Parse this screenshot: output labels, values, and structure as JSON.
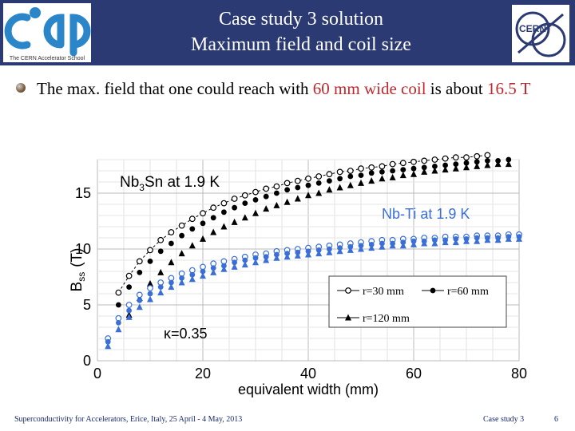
{
  "header": {
    "title_line1": "Case study 3 solution",
    "title_line2": "Maximum field and coil size",
    "cas_logo_caption": "The CERN Accelerator School",
    "cern_logo_text": "CERN"
  },
  "bullet": {
    "part1": "The max. field that one could reach with ",
    "highlight1": "60 mm wide coil",
    "part2": " is about ",
    "highlight2": "16.5 T"
  },
  "colors": {
    "header_bg": "#2b3a73",
    "highlight": "#c0272d",
    "nb3sn": "#000000",
    "nbti": "#3a6fd8"
  },
  "chart_data": {
    "type": "scatter",
    "xlabel": "equivalent width (mm)",
    "ylabel": "B",
    "ylabel_sub": "ss",
    "ylabel_unit": "(T)",
    "xlim": [
      0,
      80
    ],
    "ylim": [
      0,
      18
    ],
    "xticks": [
      0,
      20,
      40,
      60,
      80
    ],
    "yticks": [
      0,
      5,
      10,
      15
    ],
    "grid": true,
    "annotations": {
      "nb3sn_label": "Nb",
      "nb3sn_sub": "3",
      "nb3sn_rest": "Sn at 1.9 K",
      "nbti_label": "Nb-Ti at 1.9 K",
      "kappa": "κ=0.35"
    },
    "legend": {
      "placement": "bottom-right",
      "entries": [
        "r=30 mm",
        "r=60 mm",
        "r=120 mm"
      ]
    },
    "x": [
      2,
      4,
      6,
      8,
      10,
      12,
      14,
      16,
      18,
      20,
      22,
      24,
      26,
      28,
      30,
      32,
      34,
      36,
      38,
      40,
      42,
      44,
      46,
      48,
      50,
      52,
      54,
      56,
      58,
      60,
      62,
      64,
      66,
      68,
      70,
      72,
      74,
      76,
      78,
      80
    ],
    "series": [
      {
        "name": "r=30 mm",
        "group": "Nb3Sn",
        "marker": "open-circle",
        "values": [
          null,
          6.1,
          7.6,
          8.9,
          9.9,
          10.8,
          11.5,
          12.1,
          12.7,
          13.2,
          13.7,
          14.1,
          14.5,
          14.8,
          15.1,
          15.4,
          15.6,
          15.9,
          16.1,
          16.3,
          16.5,
          16.7,
          16.9,
          17.0,
          17.2,
          17.3,
          17.4,
          17.6,
          17.7,
          17.8,
          17.9,
          18.0,
          18.1,
          18.2,
          18.2,
          18.3,
          18.4,
          null,
          null,
          null
        ]
      },
      {
        "name": "r=60 mm",
        "group": "Nb3Sn",
        "marker": "filled-circle",
        "values": [
          null,
          5.0,
          6.6,
          7.9,
          8.9,
          9.8,
          10.5,
          11.2,
          11.8,
          12.3,
          12.8,
          13.3,
          13.7,
          14.1,
          14.4,
          14.7,
          15.0,
          15.3,
          15.5,
          15.7,
          15.9,
          16.1,
          16.3,
          16.5,
          16.6,
          16.8,
          16.9,
          17.0,
          17.1,
          17.2,
          17.3,
          17.4,
          17.5,
          17.6,
          17.7,
          17.8,
          17.9,
          17.9,
          18.0,
          null
        ]
      },
      {
        "name": "r=120 mm",
        "group": "Nb3Sn",
        "marker": "filled-triangle",
        "values": [
          null,
          null,
          4.1,
          5.6,
          6.9,
          7.9,
          8.8,
          9.6,
          10.3,
          10.9,
          11.5,
          12.0,
          12.4,
          12.8,
          13.2,
          13.6,
          13.9,
          14.2,
          14.5,
          14.8,
          15.0,
          15.3,
          15.5,
          15.7,
          15.9,
          16.1,
          16.3,
          16.4,
          16.6,
          16.7,
          16.9,
          17.0,
          17.1,
          17.2,
          17.3,
          17.4,
          17.5,
          17.6,
          17.6,
          null
        ]
      },
      {
        "name": "r=30 mm",
        "group": "Nb-Ti",
        "marker": "open-circle",
        "values": [
          2.0,
          3.8,
          5.0,
          5.9,
          6.5,
          7.0,
          7.4,
          7.8,
          8.1,
          8.4,
          8.7,
          8.9,
          9.1,
          9.3,
          9.5,
          9.6,
          9.8,
          9.9,
          10.0,
          10.1,
          10.2,
          10.3,
          10.4,
          10.5,
          10.6,
          10.7,
          10.8,
          10.8,
          10.9,
          10.9,
          11.0,
          11.0,
          11.1,
          11.1,
          11.1,
          11.2,
          11.2,
          11.2,
          11.3,
          11.3
        ]
      },
      {
        "name": "r=60 mm",
        "group": "Nb-Ti",
        "marker": "filled-circle",
        "values": [
          1.7,
          3.4,
          4.5,
          5.4,
          6.0,
          6.6,
          7.0,
          7.4,
          7.7,
          8.0,
          8.3,
          8.5,
          8.8,
          9.0,
          9.2,
          9.3,
          9.5,
          9.6,
          9.7,
          9.8,
          9.9,
          10.0,
          10.1,
          10.2,
          10.3,
          10.4,
          10.5,
          10.5,
          10.6,
          10.7,
          10.7,
          10.8,
          10.8,
          10.9,
          10.9,
          11.0,
          11.0,
          11.0,
          11.1,
          11.1
        ]
      },
      {
        "name": "r=120 mm",
        "group": "Nb-Ti",
        "marker": "filled-triangle",
        "values": [
          1.3,
          2.8,
          3.9,
          4.8,
          5.5,
          6.1,
          6.6,
          7.0,
          7.3,
          7.6,
          7.9,
          8.2,
          8.4,
          8.6,
          8.8,
          9.0,
          9.2,
          9.3,
          9.4,
          9.5,
          9.6,
          9.7,
          9.8,
          9.9,
          10.0,
          10.1,
          10.2,
          10.3,
          10.3,
          10.4,
          10.5,
          10.5,
          10.6,
          10.6,
          10.7,
          10.7,
          10.8,
          10.8,
          10.9,
          10.9
        ]
      }
    ]
  },
  "footer": {
    "left": "Superconductivity for Accelerators, Erice, Italy, 25 April - 4 May, 2013",
    "middle": "Case study 3",
    "page": "6"
  }
}
